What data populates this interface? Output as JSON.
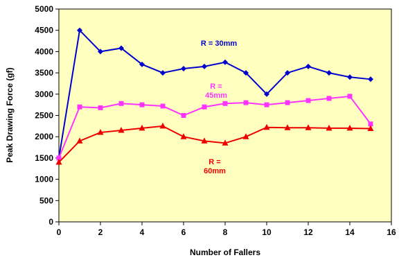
{
  "chart_data": {
    "type": "line",
    "title": "",
    "xlabel": "Number of Fallers",
    "ylabel": "Peak Drawing Force (gf)",
    "xlim": [
      0,
      16
    ],
    "ylim": [
      0,
      5000
    ],
    "xticks": [
      0,
      2,
      4,
      6,
      8,
      10,
      12,
      14,
      16
    ],
    "yticks": [
      0,
      500,
      1000,
      1500,
      2000,
      2500,
      3000,
      3500,
      4000,
      4500,
      5000
    ],
    "xtick_labels": [
      "0",
      "2",
      "4",
      "6",
      "8",
      "10",
      "12",
      "14",
      "16"
    ],
    "ytick_labels": [
      "0",
      "500",
      "1000",
      "1500",
      "2000",
      "2500",
      "3000",
      "3500",
      "4000",
      "4500",
      "5000"
    ],
    "grid": false,
    "plot_background": "#FFFFC0",
    "x": [
      0,
      1,
      2,
      3,
      4,
      5,
      6,
      7,
      8,
      9,
      10,
      11,
      12,
      13,
      14,
      15
    ],
    "series": [
      {
        "name": "R = 30mm",
        "label_lines": [
          "R = 30mm"
        ],
        "color": "#0000CC",
        "marker": "diamond",
        "values": [
          1500,
          4500,
          4000,
          4080,
          3700,
          3500,
          3600,
          3650,
          3750,
          3500,
          3000,
          3500,
          3650,
          3500,
          3400,
          3350
        ]
      },
      {
        "name": "R = 45mm",
        "label_lines": [
          "R =",
          "45mm"
        ],
        "color": "#FF33FF",
        "marker": "square",
        "values": [
          1500,
          2700,
          2680,
          2780,
          2750,
          2720,
          2500,
          2700,
          2780,
          2800,
          2750,
          2800,
          2850,
          2900,
          2950,
          2300
        ]
      },
      {
        "name": "R = 60mm",
        "label_lines": [
          "R =",
          "60mm"
        ],
        "color": "#EE0000",
        "marker": "triangle",
        "values": [
          1400,
          1900,
          2100,
          2150,
          2200,
          2250,
          2000,
          1900,
          1850,
          2000,
          2220,
          2210,
          2210,
          2200,
          2200,
          2190
        ]
      }
    ]
  }
}
